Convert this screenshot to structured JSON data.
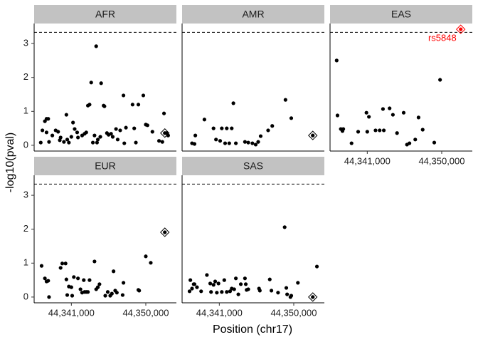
{
  "xlabel": "Position (chr17)",
  "ylabel": "-log10(pval)",
  "chart_data": [
    {
      "type": "scatter",
      "title": "AFR",
      "color": "#000000",
      "x": [
        44337300,
        44337500,
        44337800,
        44338000,
        44338200,
        44338000,
        44338300,
        44338700,
        44339100,
        44339400,
        44339600,
        44339700,
        44340100,
        44340400,
        44340500,
        44340700,
        44341000,
        44341200,
        44341400,
        44341700,
        44341800,
        44342300,
        44342600,
        44342800,
        44343000,
        44343200,
        44343400,
        44343600,
        44343800,
        44344000,
        44344100,
        44344200,
        44344500,
        44344600,
        44344900,
        44345000,
        44345300,
        44345500,
        44345800,
        44346000,
        44346400,
        44346600,
        44346900,
        44347300,
        44347400,
        44347600,
        44348400,
        44348600,
        44348800,
        44349100,
        44349700,
        44350000,
        44350200,
        44350800,
        44351600,
        44352000,
        44352200,
        44352500,
        44352700
      ],
      "values": [
        0.08,
        0.44,
        0.71,
        0.78,
        0.78,
        0.38,
        0.1,
        0.29,
        0.44,
        0.4,
        0.15,
        0.23,
        0.1,
        0.9,
        0.17,
        0.08,
        0.25,
        0.67,
        0.48,
        0.38,
        0.23,
        0.29,
        0.34,
        0.38,
        1.17,
        1.2,
        1.85,
        0.08,
        0.29,
        2.92,
        0.08,
        0.17,
        0.25,
        1.83,
        1.17,
        1.15,
        0.36,
        0.31,
        0.34,
        0.25,
        0.48,
        0.17,
        0.44,
        1.47,
        0.06,
        0.52,
        1.2,
        0.5,
        0.08,
        1.2,
        1.47,
        0.61,
        0.59,
        0.4,
        0.13,
        0.1,
        0.94,
        0.36,
        0.29
      ],
      "lead": {
        "x": 44352300,
        "y": 0.36,
        "color": "#000000"
      },
      "xlim": [
        44336500,
        44353700
      ],
      "ylim": [
        -0.17,
        3.59
      ],
      "yticks": [
        0,
        1,
        2,
        3
      ],
      "hline": 3.33
    },
    {
      "type": "scatter",
      "title": "AMR",
      "color": "#000000",
      "x": [
        44337700,
        44338000,
        44338100,
        44339200,
        44340300,
        44340600,
        44341100,
        44341300,
        44341700,
        44341900,
        44342200,
        44342500,
        44342700,
        44343000,
        44344100,
        44344500,
        44345000,
        44345400,
        44345700,
        44346000,
        44346900,
        44347400,
        44349000,
        44349700
      ],
      "values": [
        0.06,
        0.04,
        0.29,
        0.76,
        0.5,
        0.17,
        0.13,
        0.5,
        0.06,
        0.5,
        0.06,
        0.5,
        1.24,
        0.06,
        0.1,
        0.08,
        0.06,
        0.02,
        0.1,
        0.27,
        0.44,
        0.57,
        1.34,
        0.8
      ],
      "lead": {
        "x": 44352300,
        "y": 0.29,
        "color": "#000000"
      },
      "xlim": [
        44336500,
        44353700
      ],
      "ylim": [
        -0.17,
        3.59
      ],
      "hline": 3.33
    },
    {
      "type": "scatter",
      "title": "EAS",
      "color": "#000000",
      "x": [
        44337300,
        44337400,
        44337800,
        44338000,
        44338100,
        44339100,
        44339900,
        44340900,
        44341200,
        44341000,
        44342000,
        44342500,
        44343000,
        44342900,
        44343700,
        44344100,
        44344600,
        44345400,
        44345800,
        44346100,
        44346800,
        44347200,
        44347700,
        44349100,
        44349800
      ],
      "values": [
        2.5,
        0.88,
        0.48,
        0.42,
        0.48,
        0.06,
        0.4,
        0.96,
        0.84,
        0.4,
        0.44,
        0.44,
        0.44,
        1.07,
        1.09,
        0.9,
        0.36,
        0.96,
        0.02,
        0.06,
        0.17,
        0.82,
        0.46,
        0.08,
        1.93
      ],
      "lead": {
        "x": 44352300,
        "y": 3.42,
        "color": "#ff0000",
        "label": "rs5848"
      },
      "xlim": [
        44336500,
        44353700
      ],
      "ylim": [
        -0.17,
        3.59
      ],
      "hline": 3.33,
      "xticks": [
        {
          "value": 44341000,
          "label": "44,341,000"
        },
        {
          "value": 44350000,
          "label": "44,350,000"
        }
      ]
    },
    {
      "type": "scatter",
      "title": "EUR",
      "color": "#000000",
      "x": [
        44337400,
        44337800,
        44338000,
        44338200,
        44338300,
        44339700,
        44339900,
        44340300,
        44340400,
        44340500,
        44340700,
        44341000,
        44341100,
        44341300,
        44341800,
        44342100,
        44342300,
        44342500,
        44342600,
        44342800,
        44343000,
        44343200,
        44343800,
        44344000,
        44344200,
        44344400,
        44345100,
        44345400,
        44345700,
        44345900,
        44346100,
        44346300,
        44346500,
        44347200,
        44347300,
        44349100,
        44349200,
        44350000,
        44350600
      ],
      "values": [
        0.92,
        0.55,
        0.46,
        0.48,
        0,
        0.86,
        0.99,
        0.99,
        0.52,
        0.06,
        0.31,
        0.29,
        0.04,
        0.59,
        0.55,
        0.23,
        0.13,
        0.5,
        0.15,
        0.15,
        0.15,
        0.5,
        1.05,
        0.23,
        0.29,
        0.38,
        0.04,
        0.15,
        0.04,
        0.1,
        0.76,
        0.19,
        0.13,
        0.06,
        0.42,
        0.21,
        0.19,
        1.2,
        1.01
      ],
      "lead": {
        "x": 44352300,
        "y": 1.91,
        "color": "#000000"
      },
      "xlim": [
        44336500,
        44353700
      ],
      "ylim": [
        -0.17,
        3.59
      ],
      "yticks": [
        0,
        1,
        2,
        3
      ],
      "hline": 3.33,
      "xticks": [
        {
          "value": 44341000,
          "label": "44,341,000"
        },
        {
          "value": 44350000,
          "label": "44,350,000"
        }
      ]
    },
    {
      "type": "scatter",
      "title": "SAS",
      "color": "#000000",
      "x": [
        44337400,
        44337500,
        44337700,
        44337900,
        44338000,
        44338300,
        44338800,
        44339500,
        44339900,
        44340000,
        44340300,
        44340500,
        44340700,
        44340900,
        44341300,
        44341600,
        44341900,
        44342300,
        44342500,
        44342800,
        44343000,
        44343300,
        44343600,
        44344100,
        44344200,
        44344300,
        44344500,
        44345800,
        44345900,
        44347100,
        44347300,
        44348100,
        44348900,
        44349100,
        44349200,
        44349600,
        44349700,
        44350500,
        44352800
      ],
      "values": [
        0.17,
        0.5,
        0.25,
        0.38,
        0.38,
        0.29,
        0.17,
        0.65,
        0.4,
        0.15,
        0.36,
        0.46,
        0.13,
        0.4,
        0.15,
        0.5,
        0.15,
        0.17,
        0.25,
        0.23,
        0.55,
        0.08,
        0.38,
        0.55,
        0.38,
        0.21,
        0.23,
        0.25,
        0.19,
        0.52,
        0.19,
        0.13,
        2.06,
        0.27,
        0.08,
        0,
        0.04,
        0.42,
        0.9
      ],
      "lead": {
        "x": 44352300,
        "y": 0,
        "color": "#000000"
      },
      "xlim": [
        44336500,
        44353700
      ],
      "ylim": [
        -0.17,
        3.59
      ],
      "hline": 3.33,
      "xticks": [
        {
          "value": 44341000,
          "label": "44,341,000"
        },
        {
          "value": 44350000,
          "label": "44,350,000"
        }
      ]
    }
  ]
}
